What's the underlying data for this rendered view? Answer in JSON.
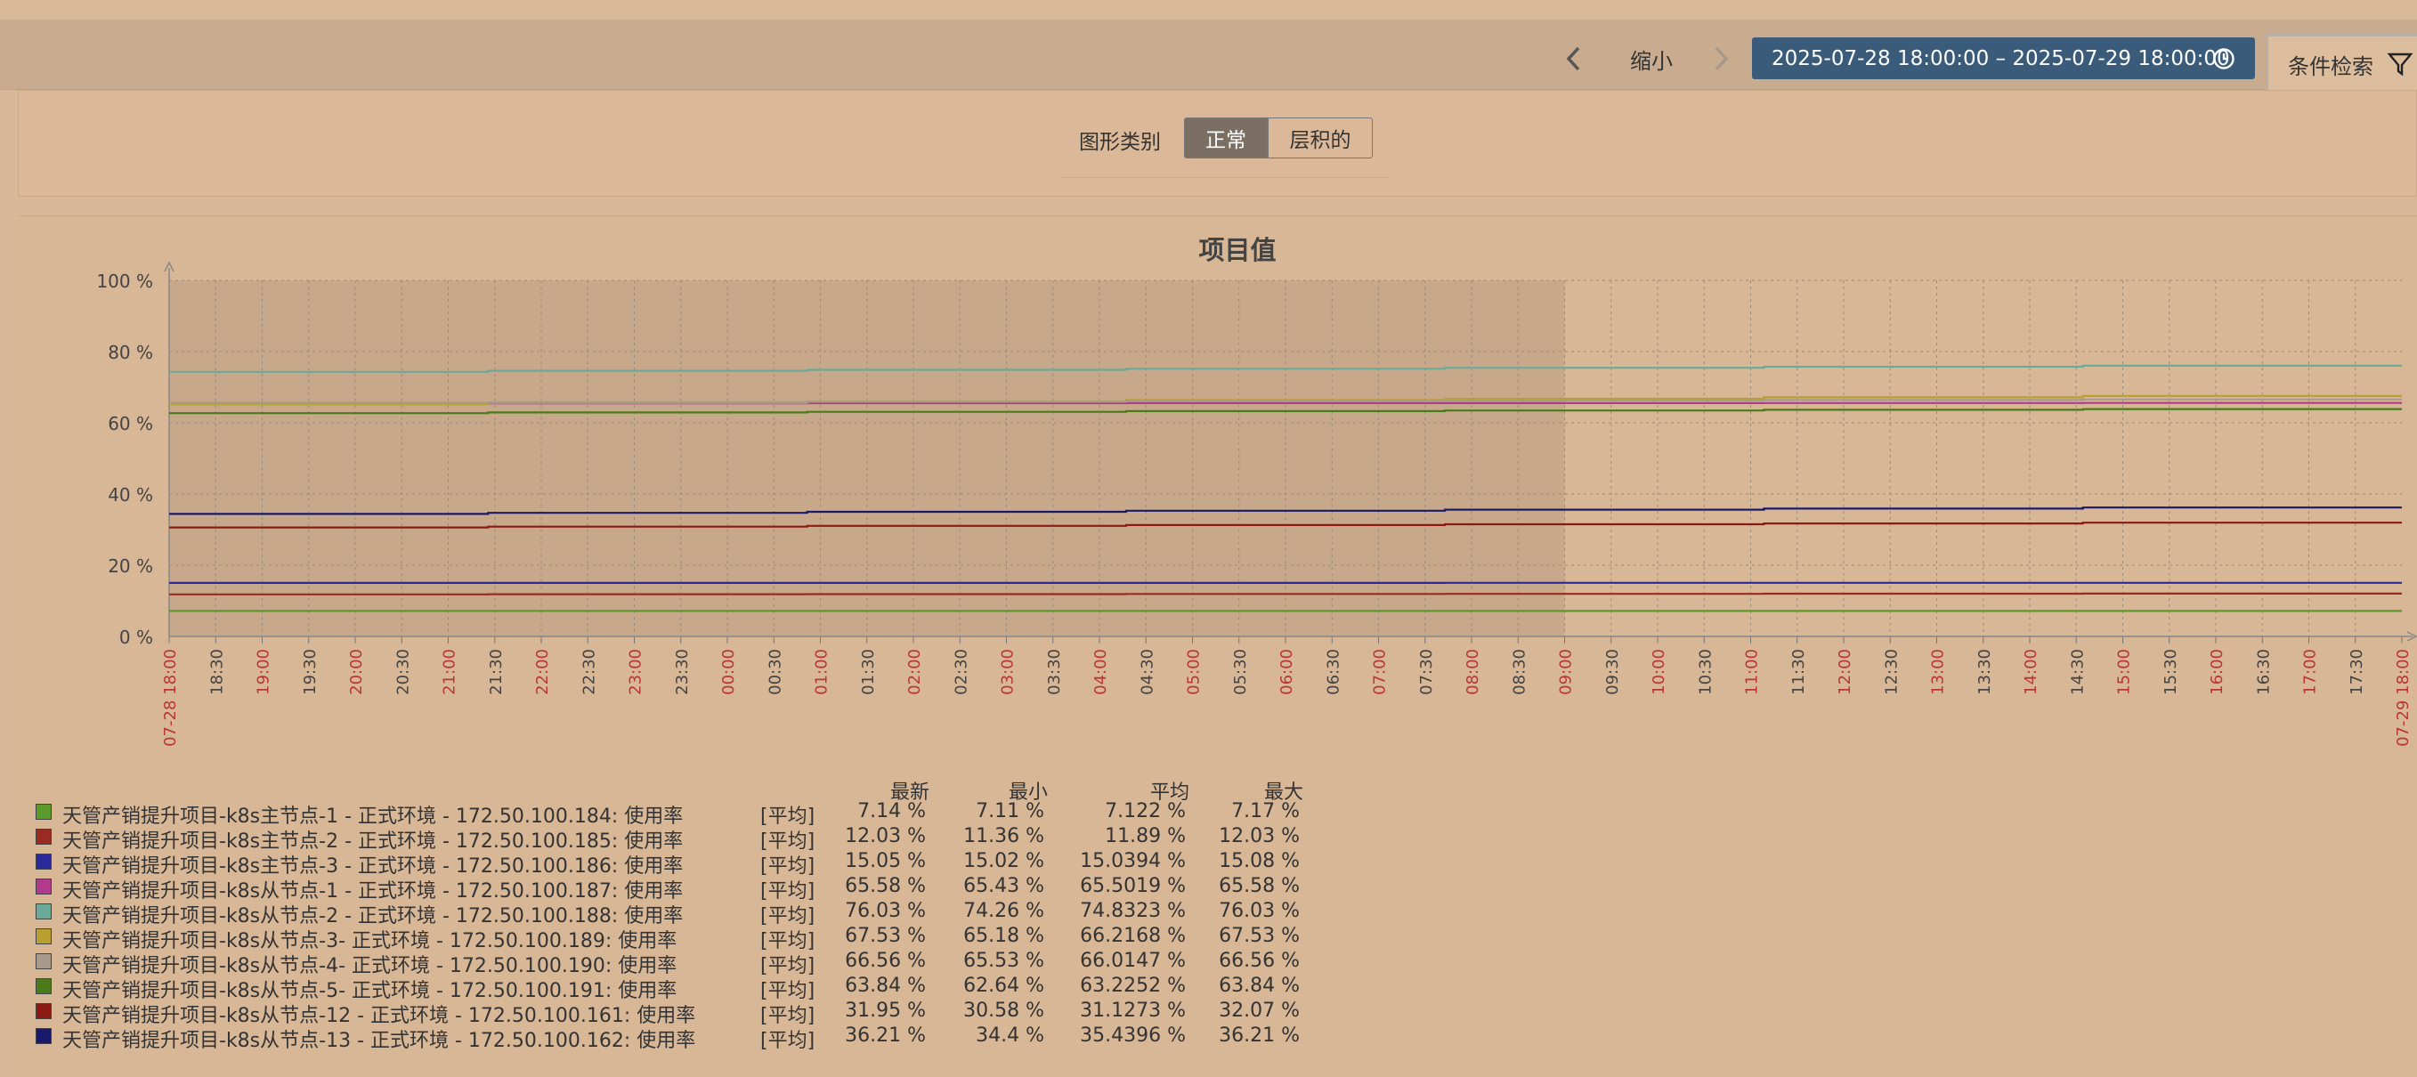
{
  "header": {
    "prev_icon": "chevron-left-icon",
    "zoom_out": "缩小",
    "next_icon": "chevron-right-icon",
    "time_range": "2025-07-28 18:00:00 – 2025-07-29 18:00:00",
    "clock_icon": "clock-icon",
    "filter_tab": "条件检索",
    "filter_icon": "filter-icon"
  },
  "controls": {
    "graph_type_label": "图形类别",
    "normal": "正常",
    "stacked": "层积的"
  },
  "chart_data": {
    "type": "line",
    "title": "项目值",
    "y_ticks": [
      "0 %",
      "20 %",
      "40 %",
      "60 %",
      "80 %",
      "100 %"
    ],
    "ylim": [
      0,
      100
    ],
    "x_start_label": "07-28 18:00",
    "x_end_label": "07-29 18:00",
    "x_labels": [
      "18:30",
      "19:00",
      "19:30",
      "20:00",
      "20:30",
      "21:00",
      "21:30",
      "22:00",
      "22:30",
      "23:00",
      "23:30",
      "00:00",
      "00:30",
      "01:00",
      "01:30",
      "02:00",
      "02:30",
      "03:00",
      "03:30",
      "04:00",
      "04:30",
      "05:00",
      "05:30",
      "06:00",
      "06:30",
      "07:00",
      "07:30",
      "08:00",
      "08:30",
      "09:00",
      "09:30",
      "10:00",
      "10:30",
      "11:00",
      "11:30",
      "12:00",
      "12:30",
      "13:00",
      "13:30",
      "14:00",
      "14:30",
      "15:00",
      "15:30",
      "16:00",
      "16:30",
      "17:00",
      "17:30"
    ],
    "shaded_range": [
      "07-28 18:00",
      "07-29 09:00"
    ],
    "series": [
      {
        "name": "天管产销提升项目-k8s主节点-1 - 正式环境 - 172.50.100.184: 使用率",
        "color": "#5a9a2a",
        "start": 7.14,
        "end": 7.14
      },
      {
        "name": "天管产销提升项目-k8s主节点-2 - 正式环境 - 172.50.100.185: 使用率",
        "color": "#9a2a22",
        "start": 11.8,
        "end": 12.03
      },
      {
        "name": "天管产销提升项目-k8s主节点-3 - 正式环境 - 172.50.100.186: 使用率",
        "color": "#2a2a9a",
        "start": 15.02,
        "end": 15.05
      },
      {
        "name": "天管产销提升项目-k8s从节点-1 - 正式环境 - 172.50.100.187: 使用率",
        "color": "#b23a8e",
        "start": 65.45,
        "end": 65.58
      },
      {
        "name": "天管产销提升项目-k8s从节点-2 - 正式环境 - 172.50.100.188: 使用率",
        "color": "#6aaa98",
        "start": 74.3,
        "end": 76.03
      },
      {
        "name": "天管产销提升项目-k8s从节点-3- 正式环境 - 172.50.100.189: 使用率",
        "color": "#b8a030",
        "start": 65.2,
        "end": 67.53
      },
      {
        "name": "天管产销提升项目-k8s从节点-4- 正式环境 - 172.50.100.190: 使用率",
        "color": "#a89a8a",
        "start": 65.6,
        "end": 66.56
      },
      {
        "name": "天管产销提升项目-k8s从节点-5- 正式环境 - 172.50.100.191: 使用率",
        "color": "#4a7a1a",
        "start": 62.7,
        "end": 63.84
      },
      {
        "name": "天管产销提升项目-k8s从节点-12 - 正式环境 - 172.50.100.161: 使用率",
        "color": "#8a1a12",
        "start": 30.6,
        "end": 31.95
      },
      {
        "name": "天管产销提升项目-k8s从节点-13 - 正式环境 - 172.50.100.162: 使用率",
        "color": "#1a1a6a",
        "start": 34.4,
        "end": 36.21
      }
    ]
  },
  "legend": {
    "headers": {
      "last": "最新",
      "min": "最小",
      "avg": "平均",
      "max": "最大"
    },
    "func_label": "[平均]",
    "rows": [
      {
        "last": "7.14 %",
        "min": "7.11 %",
        "avg": "7.122 %",
        "max": "7.17 %"
      },
      {
        "last": "12.03 %",
        "min": "11.36 %",
        "avg": "11.89 %",
        "max": "12.03 %"
      },
      {
        "last": "15.05 %",
        "min": "15.02 %",
        "avg": "15.0394 %",
        "max": "15.08 %"
      },
      {
        "last": "65.58 %",
        "min": "65.43 %",
        "avg": "65.5019 %",
        "max": "65.58 %"
      },
      {
        "last": "76.03 %",
        "min": "74.26 %",
        "avg": "74.8323 %",
        "max": "76.03 %"
      },
      {
        "last": "67.53 %",
        "min": "65.18 %",
        "avg": "66.2168 %",
        "max": "67.53 %"
      },
      {
        "last": "66.56 %",
        "min": "65.53 %",
        "avg": "66.0147 %",
        "max": "66.56 %"
      },
      {
        "last": "63.84 %",
        "min": "62.64 %",
        "avg": "63.2252 %",
        "max": "63.84 %"
      },
      {
        "last": "31.95 %",
        "min": "30.58 %",
        "avg": "31.1273 %",
        "max": "32.07 %"
      },
      {
        "last": "36.21 %",
        "min": "34.4 %",
        "avg": "35.4396 %",
        "max": "36.21 %"
      }
    ]
  }
}
